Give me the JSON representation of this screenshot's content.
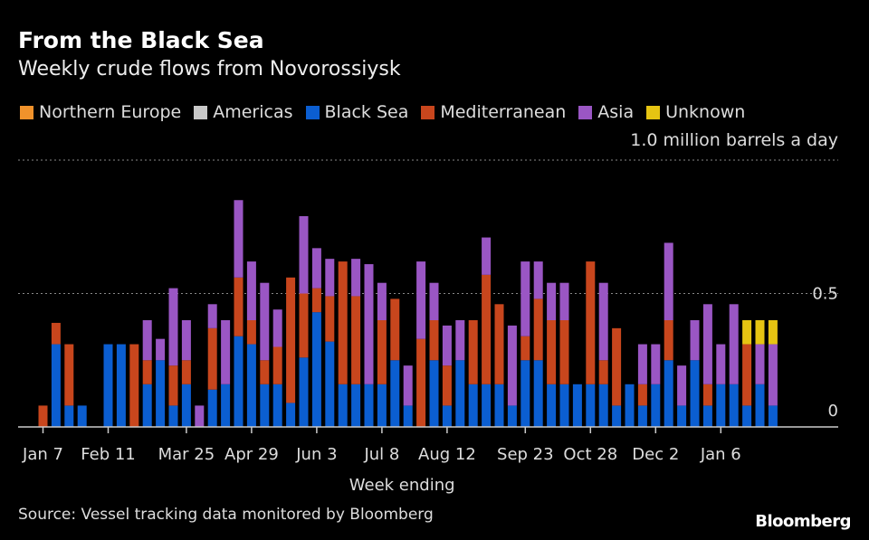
{
  "chart_data": {
    "type": "bar",
    "stacked": true,
    "title": "From the Black Sea",
    "subtitle": "Weekly crude flows from Novorossiysk",
    "unit_label": "1.0 million barrels a day",
    "xlabel": "Week ending",
    "ylim": [
      0,
      1.0
    ],
    "yticks": [
      {
        "value": 0,
        "label": "0"
      },
      {
        "value": 0.5,
        "label": "0.5"
      }
    ],
    "xticks": [
      {
        "index": 0,
        "label": "Jan 7"
      },
      {
        "index": 5,
        "label": "Feb 11"
      },
      {
        "index": 11,
        "label": "Mar 25"
      },
      {
        "index": 16,
        "label": "Apr 29"
      },
      {
        "index": 21,
        "label": "Jun 3"
      },
      {
        "index": 26,
        "label": "Jul 8"
      },
      {
        "index": 31,
        "label": "Aug 12"
      },
      {
        "index": 37,
        "label": "Sep 23"
      },
      {
        "index": 42,
        "label": "Oct 28"
      },
      {
        "index": 47,
        "label": "Dec 2"
      },
      {
        "index": 52,
        "label": "Jan 6"
      }
    ],
    "legend_position": "top-left",
    "series": [
      {
        "name": "Northern Europe",
        "color": "#f0922b",
        "values": [
          0,
          0,
          0,
          0,
          0,
          0,
          0,
          0,
          0,
          0,
          0,
          0,
          0,
          0,
          0,
          0,
          0,
          0,
          0,
          0,
          0,
          0,
          0,
          0,
          0,
          0,
          0,
          0,
          0,
          0,
          0,
          0,
          0,
          0,
          0,
          0,
          0,
          0,
          0,
          0,
          0,
          0,
          0,
          0,
          0,
          0,
          0,
          0,
          0,
          0,
          0,
          0,
          0,
          0,
          0,
          0,
          0
        ]
      },
      {
        "name": "Americas",
        "color": "#c8c8c8",
        "values": [
          0,
          0,
          0,
          0,
          0,
          0,
          0,
          0,
          0,
          0,
          0,
          0,
          0,
          0,
          0,
          0,
          0,
          0,
          0,
          0,
          0,
          0,
          0,
          0,
          0,
          0,
          0,
          0,
          0,
          0,
          0,
          0,
          0,
          0,
          0,
          0,
          0,
          0,
          0,
          0,
          0,
          0,
          0,
          0,
          0,
          0,
          0,
          0,
          0,
          0,
          0,
          0,
          0,
          0,
          0,
          0,
          0
        ]
      },
      {
        "name": "Black Sea",
        "color": "#0b5ed1",
        "values": [
          0,
          0.31,
          0.08,
          0.08,
          0,
          0.31,
          0.31,
          0,
          0.16,
          0.25,
          0.08,
          0.16,
          0,
          0.14,
          0.16,
          0.34,
          0.31,
          0.16,
          0.16,
          0.09,
          0.26,
          0.43,
          0.32,
          0.16,
          0.16,
          0.16,
          0.16,
          0.25,
          0.08,
          0,
          0.25,
          0.08,
          0.25,
          0.16,
          0.16,
          0.16,
          0.08,
          0.25,
          0.25,
          0.16,
          0.16,
          0.16,
          0.16,
          0.16,
          0.08,
          0.16,
          0.08,
          0.16,
          0.25,
          0.08,
          0.25,
          0.08,
          0.16,
          0.16,
          0.08,
          0.16,
          0.08
        ]
      },
      {
        "name": "Mediterranean",
        "color": "#c8461d",
        "values": [
          0.08,
          0.08,
          0.23,
          0,
          0,
          0,
          0,
          0.31,
          0.09,
          0,
          0.15,
          0.09,
          0,
          0.23,
          0,
          0.22,
          0.09,
          0.09,
          0.14,
          0.47,
          0.24,
          0.09,
          0.17,
          0.46,
          0.33,
          0,
          0.24,
          0.23,
          0,
          0.33,
          0.15,
          0.15,
          0,
          0.24,
          0.41,
          0.3,
          0,
          0.09,
          0.23,
          0.24,
          0.24,
          0,
          0.46,
          0.09,
          0.29,
          0,
          0.08,
          0,
          0.15,
          0,
          0,
          0.08,
          0,
          0,
          0.23,
          0,
          0
        ]
      },
      {
        "name": "Asia",
        "color": "#9a56c4",
        "values": [
          0,
          0,
          0,
          0,
          0,
          0,
          0,
          0,
          0.15,
          0.08,
          0.29,
          0.15,
          0.08,
          0.09,
          0.24,
          0.29,
          0.22,
          0.29,
          0.14,
          0,
          0.29,
          0.15,
          0.14,
          0,
          0.14,
          0.45,
          0.14,
          0,
          0.15,
          0.29,
          0.14,
          0.15,
          0.15,
          0,
          0.14,
          0,
          0.3,
          0.28,
          0.14,
          0.14,
          0.14,
          0,
          0,
          0.29,
          0,
          0,
          0.15,
          0.15,
          0.29,
          0.15,
          0.15,
          0.3,
          0.15,
          0.3,
          0,
          0.15,
          0.23
        ]
      },
      {
        "name": "Unknown",
        "color": "#e6c412",
        "values": [
          0,
          0,
          0,
          0,
          0,
          0,
          0,
          0,
          0,
          0,
          0,
          0,
          0,
          0,
          0,
          0,
          0,
          0,
          0,
          0,
          0,
          0,
          0,
          0,
          0,
          0,
          0,
          0,
          0,
          0,
          0,
          0,
          0,
          0,
          0,
          0,
          0,
          0,
          0,
          0,
          0,
          0,
          0,
          0,
          0,
          0,
          0,
          0,
          0,
          0,
          0,
          0,
          0,
          0,
          0.09,
          0.09,
          0.09
        ]
      }
    ],
    "source": "Source: Vessel tracking data monitored by Bloomberg",
    "logo": "Bloomberg"
  }
}
